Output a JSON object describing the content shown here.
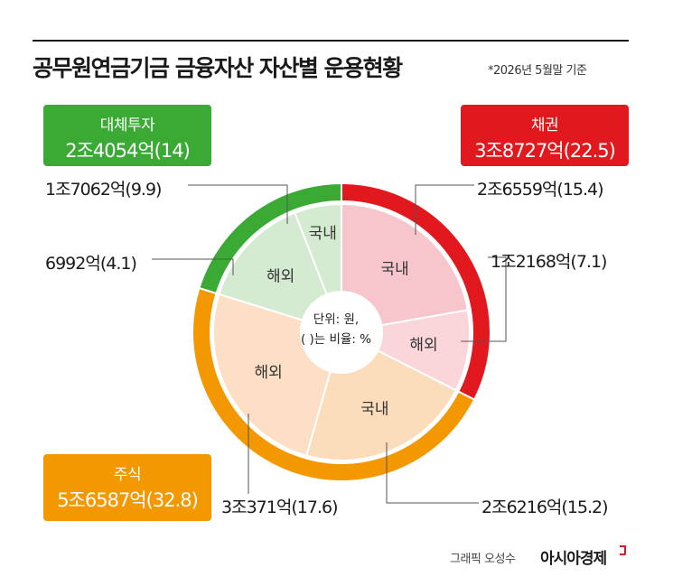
{
  "title": "공무원연금기금 금융자산 자산별 운용현황",
  "date_note": "*2026년 5월말 기준",
  "center_note": {
    "line1": "단위: 원,",
    "line2": "( )는 비율: %"
  },
  "credit": "그래픽 오성수",
  "brand": "아시아경제",
  "colors": {
    "bond": "#e1191e",
    "bond_domestic": "#f7c5cc",
    "bond_overseas": "#fad6db",
    "stock": "#f39800",
    "stock_domestic": "#fbdcbb",
    "stock_overseas": "#fcdfc4",
    "alt": "#3aaa35",
    "alt_domestic": "#d4ebd2",
    "alt_overseas": "#d4ebd2"
  },
  "chart_data": {
    "type": "pie",
    "unit": "원",
    "ratio_unit": "%",
    "outer": [
      {
        "key": "bond",
        "name": "채권",
        "amount": "3조8727억",
        "pct": 22.5
      },
      {
        "key": "stock",
        "name": "주식",
        "amount": "5조6587억",
        "pct": 32.8
      },
      {
        "key": "alt",
        "name": "대체투자",
        "amount": "2조4054억",
        "pct": 14.0
      }
    ],
    "inner": [
      {
        "parent": "bond",
        "name": "국내",
        "amount": "2조6559억",
        "pct": 15.4
      },
      {
        "parent": "bond",
        "name": "해외",
        "amount": "1조2168억",
        "pct": 7.1
      },
      {
        "parent": "stock",
        "name": "국내",
        "amount": "2조6216억",
        "pct": 15.2
      },
      {
        "parent": "stock",
        "name": "해외",
        "amount": "3조371억",
        "pct": 17.6
      },
      {
        "parent": "alt",
        "name": "국내",
        "amount": "6992억",
        "pct": 4.1
      },
      {
        "parent": "alt",
        "name": "해외",
        "amount": "1조7062억",
        "pct": 9.9
      }
    ]
  }
}
